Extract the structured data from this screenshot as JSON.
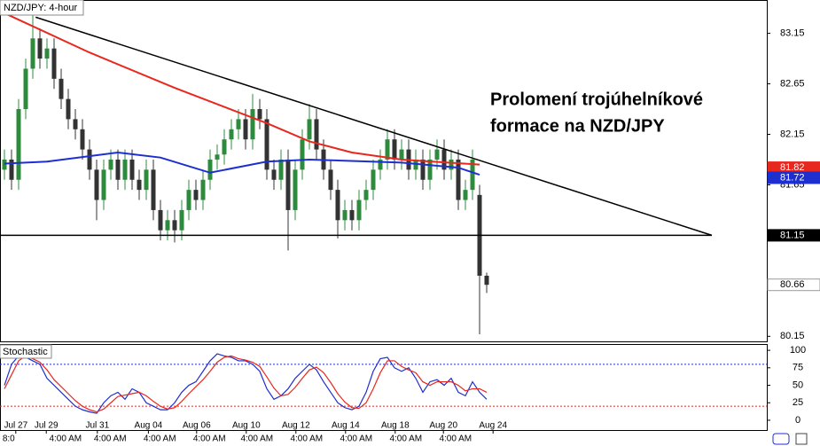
{
  "chart_data": {
    "type": "candlestick",
    "title": "NZD/JPY: 4-hour",
    "annotation": [
      "Prolomení trojúhelníkové",
      "formace na NZD/JPY"
    ],
    "up_color": "#2e8b3e",
    "down_color": "#333333",
    "xlim": [
      -0.625,
      107.5
    ],
    "ylim": [
      80.1,
      83.48
    ],
    "yticks": [
      80.15,
      80.65,
      81.15,
      81.65,
      82.15,
      82.65,
      83.15
    ],
    "xticks": [
      {
        "value": 1.6,
        "label": "Jul 27"
      },
      {
        "value": 5.9,
        "label": "Jul 29"
      },
      {
        "value": 13.1,
        "label": "Jul 31"
      },
      {
        "value": 20.3,
        "label": "Aug 04"
      },
      {
        "value": 27.1,
        "label": "Aug 06"
      },
      {
        "value": 34.1,
        "label": "Aug 10"
      },
      {
        "value": 41.1,
        "label": "Aug 12"
      },
      {
        "value": 48.1,
        "label": "Aug 14"
      },
      {
        "value": 55.1,
        "label": "Aug 18"
      },
      {
        "value": 61.9,
        "label": "Aug 20"
      },
      {
        "value": 68.9,
        "label": "Aug 24"
      }
    ],
    "xticks_time": [
      {
        "value": 0.6,
        "label": "8:0"
      },
      {
        "value": 8.6,
        "label": "4:00 AM"
      },
      {
        "value": 14.9,
        "label": "4:00 AM"
      },
      {
        "value": 21.9,
        "label": "4:00 AM"
      },
      {
        "value": 28.9,
        "label": "4:00 AM"
      },
      {
        "value": 35.6,
        "label": "4:00 AM"
      },
      {
        "value": 42.6,
        "label": "4:00 AM"
      },
      {
        "value": 49.6,
        "label": "4:00 AM"
      },
      {
        "value": 56.6,
        "label": "4:00 AM"
      },
      {
        "value": 63.6,
        "label": "4:00 AM"
      }
    ],
    "open": [
      81.8,
      81.9,
      81.7,
      82.4,
      82.8,
      83.1,
      82.9,
      83.0,
      82.7,
      82.5,
      82.3,
      82.2,
      82.0,
      81.8,
      81.5,
      81.8,
      81.9,
      81.7,
      81.9,
      81.7,
      81.6,
      81.8,
      81.4,
      81.2,
      81.3,
      81.2,
      81.4,
      81.6,
      81.5,
      81.7,
      81.9,
      81.95,
      82.1,
      82.2,
      82.3,
      82.1,
      82.4,
      82.3,
      81.8,
      81.7,
      81.9,
      81.4,
      81.8,
      82.1,
      82.3,
      82.0,
      81.8,
      81.6,
      81.3,
      81.4,
      81.3,
      81.5,
      81.6,
      81.8,
      81.9,
      82.1,
      81.9,
      82.0,
      81.8,
      81.9,
      81.7,
      81.9,
      82.0,
      81.8,
      81.9,
      81.5,
      81.6,
      81.55,
      80.75
    ],
    "high": [
      82.0,
      82.0,
      82.5,
      82.9,
      83.35,
      83.2,
      83.1,
      83.1,
      82.8,
      82.6,
      82.4,
      82.3,
      82.1,
      81.9,
      81.9,
      82.0,
      82.0,
      82.0,
      82.0,
      81.8,
      81.9,
      81.9,
      81.5,
      81.4,
      81.4,
      81.5,
      81.7,
      81.7,
      81.8,
      82.0,
      82.05,
      82.2,
      82.3,
      82.4,
      82.4,
      82.55,
      82.5,
      82.4,
      81.9,
      82.0,
      82.0,
      81.9,
      82.2,
      82.45,
      82.4,
      82.1,
      81.9,
      81.7,
      81.5,
      81.5,
      81.6,
      81.7,
      81.9,
      82.0,
      82.2,
      82.2,
      82.1,
      82.1,
      82.0,
      82.0,
      82.0,
      82.1,
      82.1,
      82.0,
      82.0,
      81.7,
      82.0,
      81.65,
      80.78
    ],
    "low": [
      81.7,
      81.6,
      81.6,
      82.3,
      82.7,
      82.8,
      82.8,
      82.6,
      82.4,
      82.2,
      82.1,
      81.9,
      81.7,
      81.3,
      81.4,
      81.7,
      81.6,
      81.6,
      81.6,
      81.5,
      81.5,
      81.3,
      81.1,
      81.1,
      81.08,
      81.1,
      81.3,
      81.4,
      81.4,
      81.6,
      81.8,
      81.85,
      82.0,
      82.1,
      82.0,
      82.0,
      82.2,
      81.7,
      81.6,
      81.6,
      81.0,
      81.3,
      81.7,
      82.0,
      81.9,
      81.7,
      81.5,
      81.12,
      81.2,
      81.2,
      81.2,
      81.4,
      81.5,
      81.7,
      81.8,
      81.8,
      81.8,
      81.7,
      81.7,
      81.6,
      81.6,
      81.8,
      81.7,
      81.7,
      81.4,
      81.4,
      81.5,
      80.17,
      80.58
    ],
    "close": [
      81.9,
      81.7,
      82.4,
      82.8,
      83.1,
      82.9,
      83.0,
      82.7,
      82.5,
      82.3,
      82.2,
      82.0,
      81.8,
      81.5,
      81.8,
      81.9,
      81.7,
      81.9,
      81.7,
      81.6,
      81.8,
      81.4,
      81.2,
      81.3,
      81.2,
      81.4,
      81.6,
      81.5,
      81.7,
      81.9,
      81.95,
      82.1,
      82.2,
      82.3,
      82.1,
      82.4,
      82.3,
      81.8,
      81.7,
      81.9,
      81.4,
      81.8,
      82.1,
      82.3,
      82.0,
      81.8,
      81.6,
      81.3,
      81.4,
      81.3,
      81.5,
      81.6,
      81.8,
      81.9,
      82.1,
      81.9,
      82.0,
      81.8,
      81.9,
      81.7,
      81.9,
      82.0,
      81.8,
      81.9,
      81.5,
      81.6,
      81.9,
      80.75,
      80.66
    ],
    "moving_averages": [
      {
        "color": "#e8281e",
        "x": [
          0,
          12,
          24,
          37,
          43,
          49,
          56,
          67
        ],
        "values": [
          83.35,
          82.96,
          82.61,
          82.26,
          82.08,
          81.97,
          81.9,
          81.85
        ]
      },
      {
        "color": "#1e2fd0",
        "x": [
          0,
          6,
          16,
          22,
          29,
          37,
          43,
          56,
          64,
          67
        ],
        "values": [
          81.86,
          81.88,
          81.97,
          81.92,
          81.77,
          81.88,
          81.9,
          81.87,
          81.82,
          81.75
        ]
      }
    ],
    "trendlines": [
      {
        "x": [
          4.4,
          99.75
        ],
        "values": [
          83.31,
          81.15
        ]
      },
      {
        "x": [
          -0.625,
          99.75
        ],
        "values": [
          81.15,
          81.15
        ]
      }
    ],
    "price_tags": [
      {
        "value": 81.82,
        "color": "#e8281e",
        "text_color": "#ffffff"
      },
      {
        "value": 81.72,
        "color": "#1e2fd0",
        "text_color": "#ffffff"
      },
      {
        "value": 81.15,
        "color": "#000000",
        "text_color": "#ffffff"
      },
      {
        "value": 80.66,
        "color": "#ffffff",
        "text_color": "#000000"
      }
    ],
    "stochastic": {
      "title": "Stochastic",
      "ylim": [
        -14,
        109
      ],
      "yticks": [
        0,
        25,
        50,
        75,
        100
      ],
      "levels": [
        {
          "value": 20,
          "color": "#e8281e"
        },
        {
          "value": 80,
          "color": "#1e2fd0"
        }
      ],
      "series": [
        {
          "color": "#1e2fd0",
          "values": [
            50,
            80,
            92,
            90,
            85,
            80,
            60,
            50,
            40,
            30,
            20,
            15,
            12,
            10,
            25,
            35,
            40,
            30,
            45,
            40,
            25,
            20,
            15,
            15,
            25,
            40,
            50,
            55,
            70,
            85,
            95,
            92,
            90,
            85,
            85,
            80,
            70,
            45,
            30,
            35,
            45,
            60,
            70,
            80,
            72,
            55,
            40,
            25,
            18,
            15,
            20,
            40,
            70,
            88,
            90,
            75,
            70,
            75,
            60,
            40,
            55,
            58,
            50,
            60,
            40,
            35,
            55,
            40,
            30
          ]
        },
        {
          "color": "#e8281e",
          "values": [
            45,
            65,
            85,
            92,
            88,
            83,
            72,
            58,
            48,
            38,
            28,
            20,
            15,
            12,
            16,
            25,
            34,
            36,
            38,
            40,
            35,
            27,
            20,
            16,
            18,
            27,
            38,
            48,
            58,
            70,
            83,
            90,
            92,
            88,
            86,
            83,
            77,
            62,
            46,
            35,
            37,
            47,
            60,
            72,
            76,
            68,
            54,
            38,
            26,
            18,
            17,
            25,
            45,
            68,
            85,
            85,
            77,
            72,
            68,
            55,
            50,
            55,
            55,
            55,
            50,
            42,
            45,
            45,
            40
          ]
        }
      ]
    }
  }
}
